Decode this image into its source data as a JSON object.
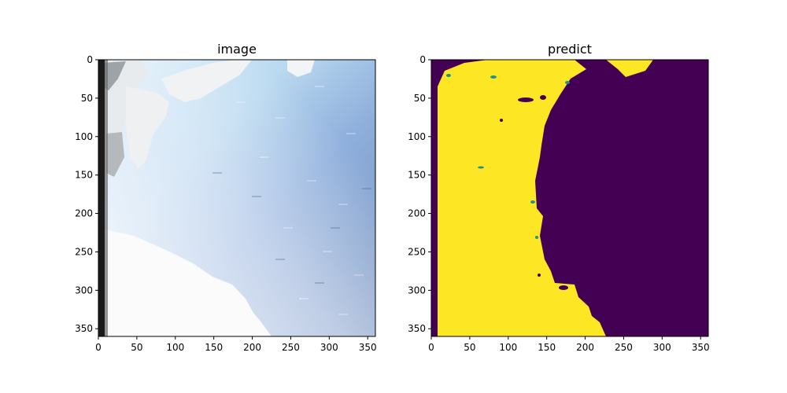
{
  "chart_data": [
    {
      "type": "heatmap",
      "title": "image",
      "xlim": [
        0,
        360
      ],
      "ylim": [
        360,
        0
      ],
      "x_ticks": [
        0,
        50,
        100,
        150,
        200,
        250,
        300,
        350
      ],
      "y_ticks": [
        0,
        50,
        100,
        150,
        200,
        250,
        300,
        350
      ],
      "colors": {
        "frame_dark": "#1b1b1b",
        "snow_white": "#f4f4f4",
        "sky_light": "#d6ecf8",
        "water_light": "#a8c8ea",
        "water_mid": "#8aa7d8",
        "water_dark": "#6f8fbe"
      }
    },
    {
      "type": "heatmap",
      "title": "predict",
      "xlim": [
        0,
        360
      ],
      "ylim": [
        360,
        0
      ],
      "x_ticks": [
        0,
        50,
        100,
        150,
        200,
        250,
        300,
        350
      ],
      "y_ticks": [
        0,
        50,
        100,
        150,
        200,
        250,
        300,
        350
      ],
      "classes": [
        {
          "value": 0,
          "color": "#440154"
        },
        {
          "value": 1,
          "color": "#fde725"
        },
        {
          "value": 0.5,
          "color": "#21918c"
        }
      ]
    }
  ]
}
